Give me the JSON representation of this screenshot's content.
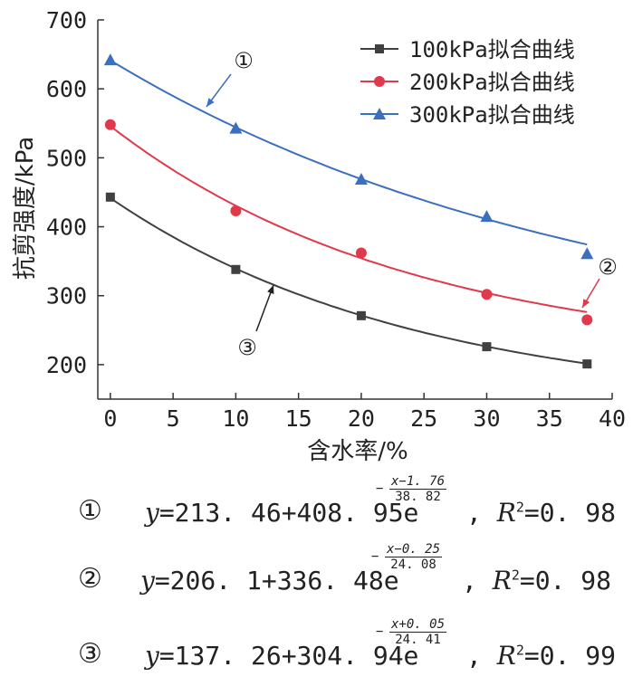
{
  "chart_data": {
    "type": "scatter",
    "ylabel": "抗剪强度/kPa",
    "xlabel": "含水率/%",
    "xlim": [
      -1,
      40
    ],
    "ylim": [
      150,
      700
    ],
    "xticks": [
      0,
      5,
      10,
      15,
      20,
      25,
      30,
      35,
      40
    ],
    "yticks": [
      200,
      300,
      400,
      500,
      600,
      700
    ],
    "legend_position": "top-right",
    "series": [
      {
        "name": "100kPa拟合曲线",
        "marker": "square",
        "color": "#404040",
        "x": [
          0,
          10,
          20,
          30,
          38
        ],
        "y": [
          443,
          338,
          271,
          226,
          201
        ],
        "fit": {
          "a": 137.26,
          "b": 304.94,
          "c": -0.05,
          "d": 24.41
        }
      },
      {
        "name": "200kPa拟合曲线",
        "marker": "circle",
        "color": "#e0394b",
        "x": [
          0,
          10,
          20,
          30,
          38
        ],
        "y": [
          548,
          423,
          362,
          302,
          265
        ],
        "fit": {
          "a": 206.1,
          "b": 336.48,
          "c": 0.25,
          "d": 24.08
        }
      },
      {
        "name": "300kPa拟合曲线",
        "marker": "triangle",
        "color": "#3b6fbf",
        "x": [
          0,
          10,
          20,
          30,
          38
        ],
        "y": [
          642,
          543,
          469,
          415,
          361
        ],
        "fit": {
          "a": 213.46,
          "b": 408.95,
          "c": 1.76,
          "d": 38.82
        }
      }
    ],
    "annotations": [
      {
        "label": "①",
        "target_series": "300kPa拟合曲线"
      },
      {
        "label": "②",
        "target_series": "200kPa拟合曲线"
      },
      {
        "label": "③",
        "target_series": "100kPa拟合曲线"
      }
    ]
  },
  "formulas": [
    {
      "num": "①",
      "y": "y",
      "main": "=213. 46+408. 95e",
      "minus": "−",
      "exp_num": "x−1. 76",
      "exp_den": "38. 82",
      "sep": ", ",
      "r2_label": "R",
      "r2_sup": "2",
      "r2_value": "=0. 98"
    },
    {
      "num": "②",
      "y": "y",
      "main": "=206. 1+336. 48e",
      "minus": "−",
      "exp_num": "x−0. 25",
      "exp_den": "24. 08",
      "sep": ", ",
      "r2_label": "R",
      "r2_sup": "2",
      "r2_value": "=0. 98"
    },
    {
      "num": "③",
      "y": "y",
      "main": "=137. 26+304. 94e",
      "minus": "−",
      "exp_num": "x+0. 05",
      "exp_den": "24. 41",
      "sep": ", ",
      "r2_label": "R",
      "r2_sup": "2",
      "r2_value": "=0. 99"
    }
  ]
}
